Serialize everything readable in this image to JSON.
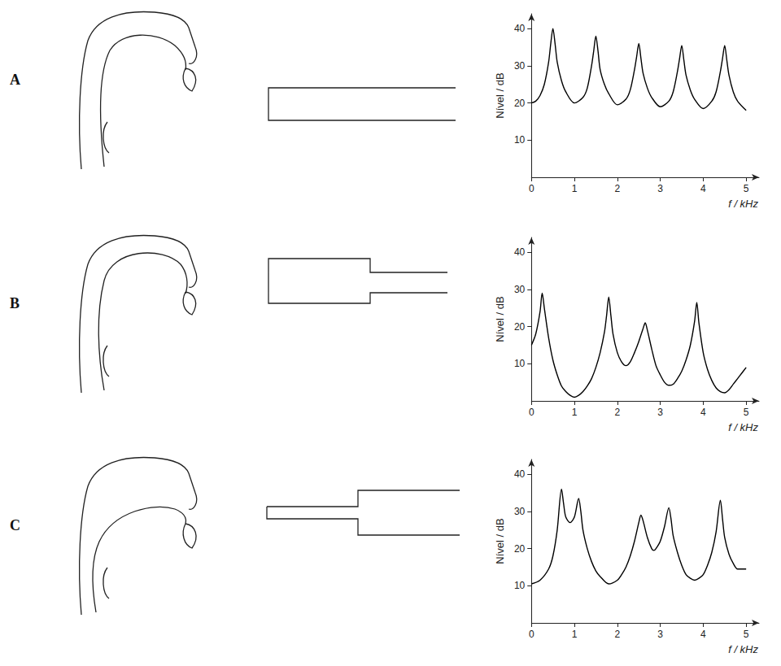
{
  "chart_data": [
    {
      "panel": "A",
      "type": "line",
      "color": "#000000",
      "grid": false,
      "xlabel": "f / kHz",
      "ylabel": "Nível / dB",
      "xlim": [
        0,
        5.3
      ],
      "ylim": [
        0,
        44
      ],
      "xticks": [
        0,
        1,
        2,
        3,
        4,
        5
      ],
      "yticks": [
        10,
        20,
        30,
        40
      ],
      "x": [
        0,
        0.1,
        0.2,
        0.3,
        0.4,
        0.45,
        0.5,
        0.55,
        0.6,
        0.7,
        0.8,
        1.0,
        1.2,
        1.3,
        1.4,
        1.45,
        1.5,
        1.55,
        1.6,
        1.7,
        1.8,
        2.0,
        2.2,
        2.3,
        2.4,
        2.45,
        2.5,
        2.55,
        2.6,
        2.7,
        2.8,
        3.0,
        3.2,
        3.3,
        3.4,
        3.45,
        3.5,
        3.55,
        3.6,
        3.7,
        3.8,
        4.0,
        4.2,
        4.3,
        4.4,
        4.45,
        4.5,
        4.55,
        4.6,
        4.7,
        4.8,
        5.0
      ],
      "values": [
        20,
        20.5,
        22,
        25,
        31,
        36,
        40,
        36,
        31,
        26,
        23,
        20,
        21.5,
        24,
        30,
        34,
        38,
        34,
        29,
        25,
        22.5,
        19.5,
        21,
        23.5,
        29,
        32.5,
        36,
        32,
        28,
        24,
        21.5,
        19,
        20.5,
        23,
        28.5,
        32,
        35.5,
        31.5,
        27.5,
        23.5,
        21,
        18.5,
        20.5,
        23,
        28.5,
        32,
        35.5,
        31.5,
        27.5,
        23,
        20.5,
        18
      ]
    },
    {
      "panel": "B",
      "type": "line",
      "color": "#000000",
      "grid": false,
      "xlabel": "f / kHz",
      "ylabel": "Nível / dB",
      "xlim": [
        0,
        5.3
      ],
      "ylim": [
        0,
        44
      ],
      "xticks": [
        0,
        1,
        2,
        3,
        4,
        5
      ],
      "yticks": [
        10,
        20,
        30,
        40
      ],
      "x": [
        0,
        0.1,
        0.2,
        0.25,
        0.3,
        0.4,
        0.5,
        0.6,
        0.7,
        0.8,
        0.9,
        1.0,
        1.1,
        1.2,
        1.3,
        1.4,
        1.5,
        1.6,
        1.7,
        1.75,
        1.8,
        1.85,
        1.9,
        2.0,
        2.1,
        2.2,
        2.3,
        2.4,
        2.5,
        2.6,
        2.65,
        2.7,
        2.8,
        2.9,
        3.0,
        3.1,
        3.2,
        3.3,
        3.4,
        3.5,
        3.6,
        3.7,
        3.8,
        3.85,
        3.9,
        4.0,
        4.1,
        4.2,
        4.3,
        4.4,
        4.5,
        4.6,
        4.7,
        4.8,
        4.9,
        5.0
      ],
      "values": [
        15,
        18,
        24,
        29,
        25,
        17,
        11,
        7,
        4,
        2.5,
        1.5,
        1,
        1.5,
        2.5,
        4,
        6,
        9,
        13,
        18.5,
        23,
        28,
        23,
        18,
        13,
        10.5,
        9.5,
        10.5,
        13,
        16,
        19.5,
        21,
        19,
        14,
        9.5,
        7,
        5,
        4.2,
        4.5,
        6,
        8,
        11,
        15,
        21.5,
        26.5,
        21,
        13,
        8.5,
        5.5,
        3.5,
        2.5,
        2.2,
        3,
        4.5,
        6,
        7.5,
        9
      ]
    },
    {
      "panel": "C",
      "type": "line",
      "color": "#000000",
      "grid": false,
      "xlabel": "f / kHz",
      "ylabel": "Nível / dB",
      "xlim": [
        0,
        5.3
      ],
      "ylim": [
        0,
        44
      ],
      "xticks": [
        0,
        1,
        2,
        3,
        4,
        5
      ],
      "yticks": [
        10,
        20,
        30,
        40
      ],
      "x": [
        0,
        0.2,
        0.4,
        0.5,
        0.6,
        0.7,
        0.75,
        0.8,
        0.9,
        1.0,
        1.1,
        1.15,
        1.2,
        1.3,
        1.4,
        1.5,
        1.6,
        1.8,
        2.0,
        2.1,
        2.2,
        2.3,
        2.4,
        2.5,
        2.55,
        2.6,
        2.7,
        2.8,
        2.85,
        2.9,
        3.0,
        3.1,
        3.2,
        3.25,
        3.3,
        3.4,
        3.5,
        3.6,
        3.7,
        3.8,
        3.9,
        4.0,
        4.1,
        4.2,
        4.3,
        4.4,
        4.45,
        4.5,
        4.6,
        4.7,
        4.8,
        4.9,
        5.0
      ],
      "values": [
        10.5,
        11.5,
        14.5,
        18,
        25,
        36,
        32,
        28.5,
        27,
        28.5,
        33.5,
        30,
        25,
        20,
        16.5,
        14,
        12.5,
        10.5,
        11.5,
        13,
        15,
        18,
        22,
        27,
        29,
        27.5,
        23,
        20,
        19.5,
        20,
        22,
        26,
        31,
        28,
        23.5,
        19,
        15.5,
        13,
        12,
        11.5,
        12,
        13,
        15.5,
        19,
        24.5,
        33,
        28,
        23,
        18.5,
        16,
        14.5,
        14.5,
        14.5
      ]
    }
  ]
}
